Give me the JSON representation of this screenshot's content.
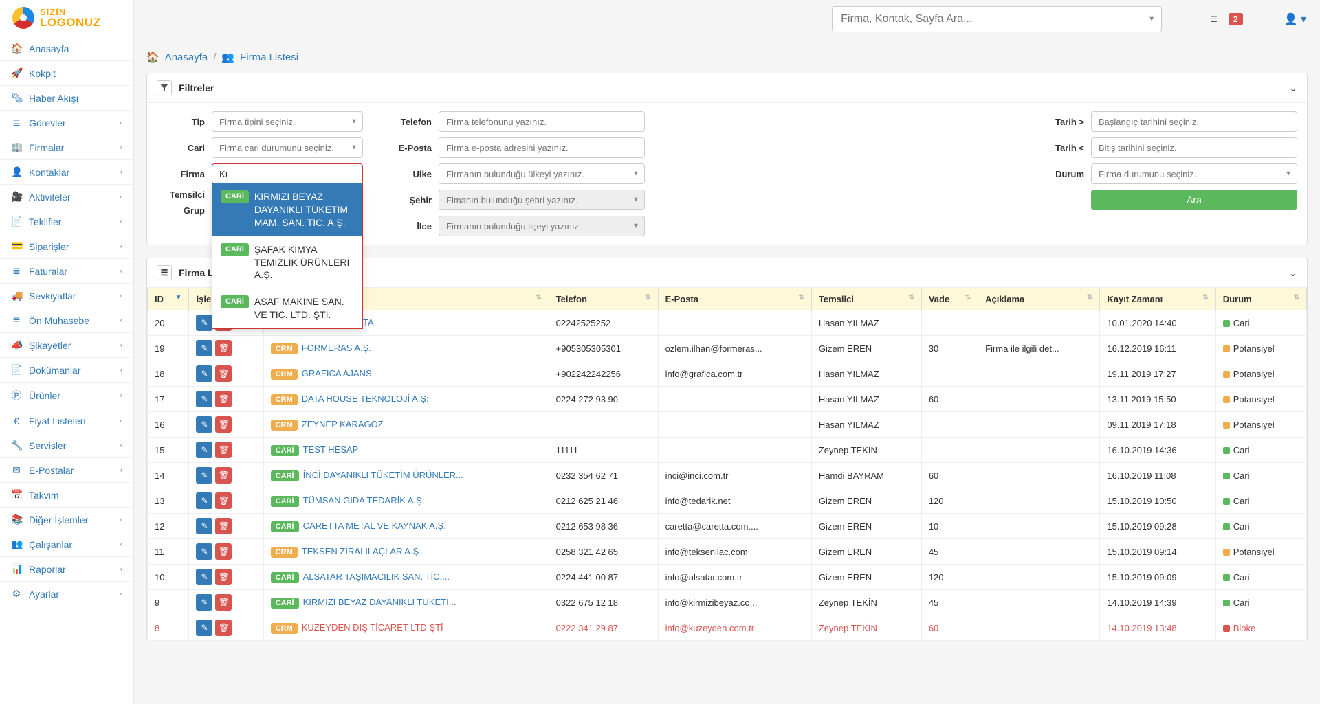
{
  "logo": {
    "line1": "SİZİN",
    "line2": "LOGONUZ"
  },
  "topbar": {
    "search_placeholder": "Firma, Kontak, Sayfa Ara...",
    "badge": "2"
  },
  "nav": [
    {
      "icon": "🏠",
      "label": "Anasayfa",
      "expand": false
    },
    {
      "icon": "🚀",
      "label": "Kokpit",
      "expand": false
    },
    {
      "icon": "🗞",
      "label": "Haber Akışı",
      "expand": false
    },
    {
      "icon": "≣",
      "label": "Görevler",
      "expand": true
    },
    {
      "icon": "🏢",
      "label": "Firmalar",
      "expand": true
    },
    {
      "icon": "👤",
      "label": "Kontaklar",
      "expand": true
    },
    {
      "icon": "🎥",
      "label": "Aktiviteler",
      "expand": true
    },
    {
      "icon": "📄",
      "label": "Teklifler",
      "expand": true
    },
    {
      "icon": "💳",
      "label": "Siparişler",
      "expand": true
    },
    {
      "icon": "≣",
      "label": "Faturalar",
      "expand": true
    },
    {
      "icon": "🚚",
      "label": "Sevkiyatlar",
      "expand": true
    },
    {
      "icon": "≣",
      "label": "Ön Muhasebe",
      "expand": true
    },
    {
      "icon": "📣",
      "label": "Şikayetler",
      "expand": true
    },
    {
      "icon": "📄",
      "label": "Dokümanlar",
      "expand": true
    },
    {
      "icon": "Ⓟ",
      "label": "Ürünler",
      "expand": true
    },
    {
      "icon": "€",
      "label": "Fiyat Listeleri",
      "expand": true
    },
    {
      "icon": "🔧",
      "label": "Servisler",
      "expand": true
    },
    {
      "icon": "✉",
      "label": "E-Postalar",
      "expand": true
    },
    {
      "icon": "📅",
      "label": "Takvim",
      "expand": false
    },
    {
      "icon": "📚",
      "label": "Diğer İşlemler",
      "expand": true
    },
    {
      "icon": "👥",
      "label": "Çalışanlar",
      "expand": true
    },
    {
      "icon": "📊",
      "label": "Raporlar",
      "expand": true
    },
    {
      "icon": "⚙",
      "label": "Ayarlar",
      "expand": true
    }
  ],
  "breadcrumb": {
    "home": "Anasayfa",
    "page": "Firma Listesi"
  },
  "filters": {
    "title": "Filtreler",
    "labels": {
      "tip": "Tip",
      "cari": "Cari",
      "firma": "Firma",
      "temsilci": "Temsilci",
      "grup": "Grup",
      "telefon": "Telefon",
      "eposta": "E-Posta",
      "ulke": "Ülke",
      "sehir": "Şehir",
      "ilce": "İlce",
      "t_gt": "Tarih >",
      "t_lt": "Tarih <",
      "durum": "Durum"
    },
    "placeholders": {
      "tip": "Firma tipini seçiniz.",
      "cari": "Firma cari durumunu seçiniz.",
      "telefon": "Firma telefonunu yazınız.",
      "eposta": "Firma e-posta adresini yazınız.",
      "ulke": "Firmanın bulunduğu ülkeyi yazınız.",
      "sehir": "Fimanın bulunduğu şehri yazınız.",
      "ilce": "Firmanın bulunduğu ilçeyi yazınız.",
      "t_gt": "Başlangıç tarihini seçiniz.",
      "t_lt": "Bitiş tarihini seçiniz.",
      "durum": "Firma durumunu seçiniz."
    },
    "firma_value": "Kı",
    "search_btn": "Ara",
    "autocomplete": [
      {
        "badge": "CARİ",
        "text": "KIRMIZI BEYAZ DAYANIKLI TÜKETİM MAM. SAN. TİC. A.Ş.",
        "selected": true
      },
      {
        "badge": "CARİ",
        "text": "ŞAFAK KİMYA TEMİZLİK ÜRÜNLERİ A.Ş.",
        "selected": false
      },
      {
        "badge": "CARİ",
        "text": "ASAF MAKİNE SAN. VE TİC. LTD. ŞTİ.",
        "selected": false
      }
    ]
  },
  "tablePanel": {
    "title": "Firma Listes..."
  },
  "columns": [
    "ID",
    "İşlemler",
    "Adı",
    "Telefon",
    "E-Posta",
    "Temsilci",
    "Vade",
    "Açıklama",
    "Kayıt Zamanı",
    "Durum"
  ],
  "status_colors": {
    "Cari": "#5cb85c",
    "Potansiyel": "#f0ad4e",
    "Bloke": "#d9534f"
  },
  "tag_colors": {
    "CARİ": "#5cb85c",
    "CRM": "#f0ad4e"
  },
  "rows": [
    {
      "id": "20",
      "tag": "CARİ",
      "name": "SİMETRİ HARİTA",
      "tel": "02242525252",
      "email": "",
      "rep": "Hasan YILMAZ",
      "vade": "",
      "acik": "",
      "ts": "10.01.2020 14:40",
      "status": "Cari",
      "red": false
    },
    {
      "id": "19",
      "tag": "CRM",
      "name": "FORMERAS A.Ş.",
      "tel": "+905305305301",
      "email": "ozlem.ilhan@formeras...",
      "rep": "Gizem EREN",
      "vade": "30",
      "acik": "Firma ile ilgili det...",
      "ts": "16.12.2019 16:11",
      "status": "Potansiyel",
      "red": false
    },
    {
      "id": "18",
      "tag": "CRM",
      "name": "GRAFICA AJANS",
      "tel": "+902242242256",
      "email": "info@grafica.com.tr",
      "rep": "Hasan YILMAZ",
      "vade": "",
      "acik": "",
      "ts": "19.11.2019 17:27",
      "status": "Potansiyel",
      "red": false
    },
    {
      "id": "17",
      "tag": "CRM",
      "name": "DATA HOUSE TEKNOLOJİ A.Ş:",
      "tel": "0224 272 93 90",
      "email": "",
      "rep": "Hasan YILMAZ",
      "vade": "60",
      "acik": "",
      "ts": "13.11.2019 15:50",
      "status": "Potansiyel",
      "red": false
    },
    {
      "id": "16",
      "tag": "CRM",
      "name": "ZEYNEP KARAGOZ",
      "tel": "",
      "email": "",
      "rep": "Hasan YILMAZ",
      "vade": "",
      "acik": "",
      "ts": "09.11.2019 17:18",
      "status": "Potansiyel",
      "red": false
    },
    {
      "id": "15",
      "tag": "CARİ",
      "name": "TEST HESAP",
      "tel": "11111",
      "email": "",
      "rep": "Zeynep TEKİN",
      "vade": "",
      "acik": "",
      "ts": "16.10.2019 14:36",
      "status": "Cari",
      "red": false
    },
    {
      "id": "14",
      "tag": "CARİ",
      "name": "İNCİ DAYANIKLI TÜKETİM ÜRÜNLER...",
      "tel": "0232 354 62 71",
      "email": "inci@inci.com.tr",
      "rep": "Hamdi BAYRAM",
      "vade": "60",
      "acik": "",
      "ts": "16.10.2019 11:08",
      "status": "Cari",
      "red": false
    },
    {
      "id": "13",
      "tag": "CARİ",
      "name": "TÜMSAN GIDA TEDARİK A.Ş.",
      "tel": "0212 625 21 46",
      "email": "info@tedarik.net",
      "rep": "Gizem EREN",
      "vade": "120",
      "acik": "",
      "ts": "15.10.2019 10:50",
      "status": "Cari",
      "red": false
    },
    {
      "id": "12",
      "tag": "CARİ",
      "name": "CARETTA METAL VE KAYNAK A.Ş.",
      "tel": "0212 653 98 36",
      "email": "caretta@caretta.com....",
      "rep": "Gizem EREN",
      "vade": "10",
      "acik": "",
      "ts": "15.10.2019 09:28",
      "status": "Cari",
      "red": false
    },
    {
      "id": "11",
      "tag": "CRM",
      "name": "TEKSEN ZİRAİ İLAÇLAR A.Ş.",
      "tel": "0258 321 42 65",
      "email": "info@teksenilac.com",
      "rep": "Gizem EREN",
      "vade": "45",
      "acik": "",
      "ts": "15.10.2019 09:14",
      "status": "Potansiyel",
      "red": false
    },
    {
      "id": "10",
      "tag": "CARİ",
      "name": "ALSATAR TAŞIMACILIK SAN. TİC....",
      "tel": "0224 441 00 87",
      "email": "info@alsatar.com.tr",
      "rep": "Gizem EREN",
      "vade": "120",
      "acik": "",
      "ts": "15.10.2019 09:09",
      "status": "Cari",
      "red": false
    },
    {
      "id": "9",
      "tag": "CARİ",
      "name": "KIRMIZI BEYAZ DAYANIKLI TÜKETİ...",
      "tel": "0322 675 12 18",
      "email": "info@kirmizibeyaz.co...",
      "rep": "Zeynep TEKİN",
      "vade": "45",
      "acik": "",
      "ts": "14.10.2019 14:39",
      "status": "Cari",
      "red": false
    },
    {
      "id": "8",
      "tag": "CRM",
      "name": "KUZEYDEN DIŞ TİCARET LTD ŞTİ",
      "tel": "0222 341 29 87",
      "email": "info@kuzeyden.com.tr",
      "rep": "Zeynep TEKİN",
      "vade": "60",
      "acik": "",
      "ts": "14.10.2019 13:48",
      "status": "Bloke",
      "red": true
    }
  ]
}
